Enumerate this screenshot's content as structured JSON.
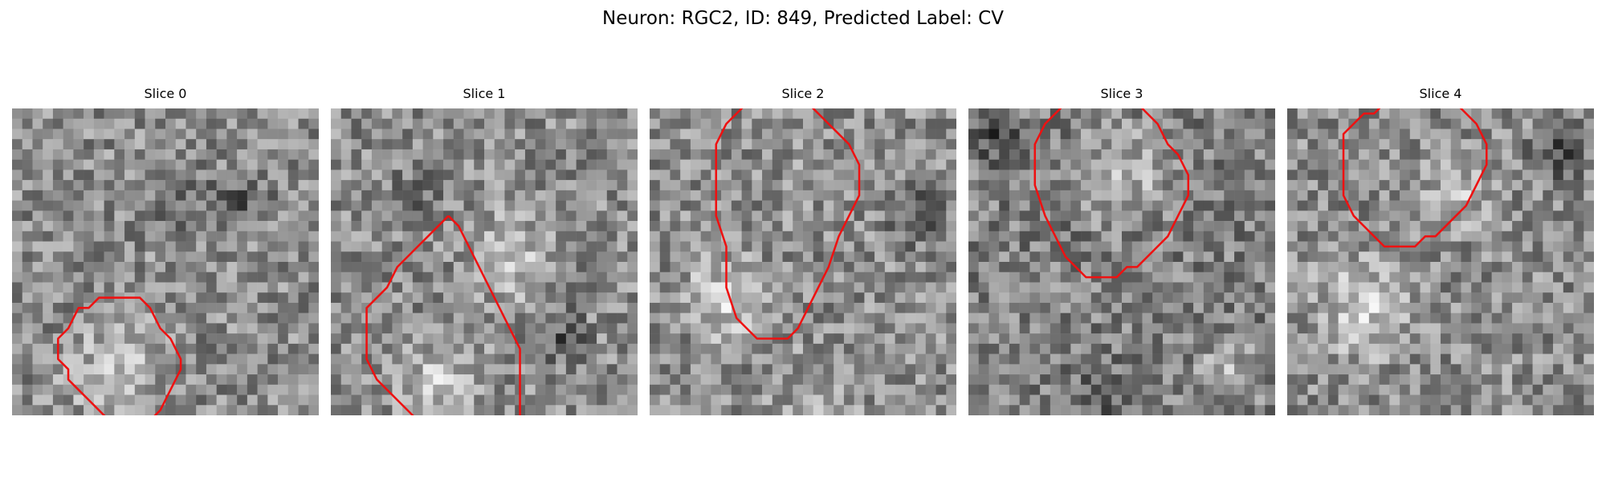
{
  "figure": {
    "title": "Neuron: RGC2, ID: 849, Predicted Label: CV",
    "contour_color": "#ee1111"
  },
  "slices": [
    {
      "label": "Slice 0",
      "contour": [
        [
          11,
          18
        ],
        [
          12,
          18
        ],
        [
          13,
          19
        ],
        [
          14,
          21
        ],
        [
          15,
          22
        ],
        [
          16,
          24
        ],
        [
          16,
          25
        ],
        [
          15,
          27
        ],
        [
          14,
          29
        ],
        [
          13,
          30
        ],
        [
          9,
          30
        ],
        [
          8,
          29
        ],
        [
          7,
          28
        ],
        [
          6,
          27
        ],
        [
          5,
          26
        ],
        [
          5,
          25
        ],
        [
          4,
          24
        ],
        [
          4,
          22
        ],
        [
          5,
          21
        ],
        [
          6,
          19
        ],
        [
          7,
          19
        ],
        [
          8,
          18
        ],
        [
          9,
          18
        ],
        [
          10,
          18
        ],
        [
          11,
          18
        ]
      ]
    },
    {
      "label": "Slice 1",
      "contour": [
        [
          11,
          10
        ],
        [
          12,
          11
        ],
        [
          13,
          13
        ],
        [
          14,
          15
        ],
        [
          15,
          17
        ],
        [
          16,
          19
        ],
        [
          17,
          21
        ],
        [
          18,
          23
        ],
        [
          18,
          27
        ],
        [
          18,
          30
        ],
        [
          17,
          31
        ],
        [
          16,
          32
        ],
        [
          14,
          32
        ],
        [
          10,
          32
        ],
        [
          9,
          31
        ],
        [
          7,
          29
        ],
        [
          5,
          27
        ],
        [
          4,
          26
        ],
        [
          3,
          24
        ],
        [
          3,
          22
        ],
        [
          3,
          19
        ],
        [
          4,
          18
        ],
        [
          5,
          17
        ],
        [
          6,
          15
        ],
        [
          7,
          14
        ],
        [
          8,
          13
        ],
        [
          9,
          12
        ],
        [
          10,
          11
        ],
        [
          11,
          10
        ]
      ]
    },
    {
      "label": "Slice 2",
      "contour": [
        [
          9,
          -1
        ],
        [
          8,
          0
        ],
        [
          7,
          1
        ],
        [
          6,
          3
        ],
        [
          6,
          6
        ],
        [
          6,
          10
        ],
        [
          7,
          13
        ],
        [
          7,
          15
        ],
        [
          7,
          17
        ],
        [
          8,
          20
        ],
        [
          9,
          21
        ],
        [
          10,
          22
        ],
        [
          11,
          22
        ],
        [
          13,
          22
        ],
        [
          14,
          21
        ],
        [
          15,
          19
        ],
        [
          16,
          17
        ],
        [
          17,
          15
        ],
        [
          18,
          12
        ],
        [
          19,
          10
        ],
        [
          20,
          8
        ],
        [
          20,
          5
        ],
        [
          19,
          3
        ],
        [
          18,
          2
        ],
        [
          17,
          1
        ],
        [
          16,
          0
        ],
        [
          15,
          -1
        ]
      ]
    },
    {
      "label": "Slice 3",
      "contour": [
        [
          9,
          -1
        ],
        [
          7,
          1
        ],
        [
          6,
          3
        ],
        [
          6,
          7
        ],
        [
          7,
          10
        ],
        [
          8,
          12
        ],
        [
          9,
          14
        ],
        [
          10,
          15
        ],
        [
          11,
          16
        ],
        [
          12,
          16
        ],
        [
          14,
          16
        ],
        [
          15,
          15
        ],
        [
          16,
          15
        ],
        [
          17,
          14
        ],
        [
          18,
          13
        ],
        [
          19,
          12
        ],
        [
          20,
          10
        ],
        [
          21,
          8
        ],
        [
          21,
          6
        ],
        [
          20,
          4
        ],
        [
          19,
          3
        ],
        [
          18,
          1
        ],
        [
          17,
          0
        ],
        [
          16,
          -1
        ]
      ]
    },
    {
      "label": "Slice 4",
      "contour": [
        [
          9,
          -1
        ],
        [
          8,
          0
        ],
        [
          7,
          0
        ],
        [
          6,
          1
        ],
        [
          5,
          2
        ],
        [
          5,
          4
        ],
        [
          5,
          8
        ],
        [
          6,
          10
        ],
        [
          7,
          11
        ],
        [
          8,
          12
        ],
        [
          9,
          13
        ],
        [
          10,
          13
        ],
        [
          12,
          13
        ],
        [
          13,
          12
        ],
        [
          14,
          12
        ],
        [
          15,
          11
        ],
        [
          16,
          10
        ],
        [
          17,
          9
        ],
        [
          18,
          7
        ],
        [
          19,
          5
        ],
        [
          19,
          3
        ],
        [
          18,
          1
        ],
        [
          17,
          0
        ],
        [
          16,
          -1
        ],
        [
          15,
          -1
        ]
      ]
    }
  ]
}
